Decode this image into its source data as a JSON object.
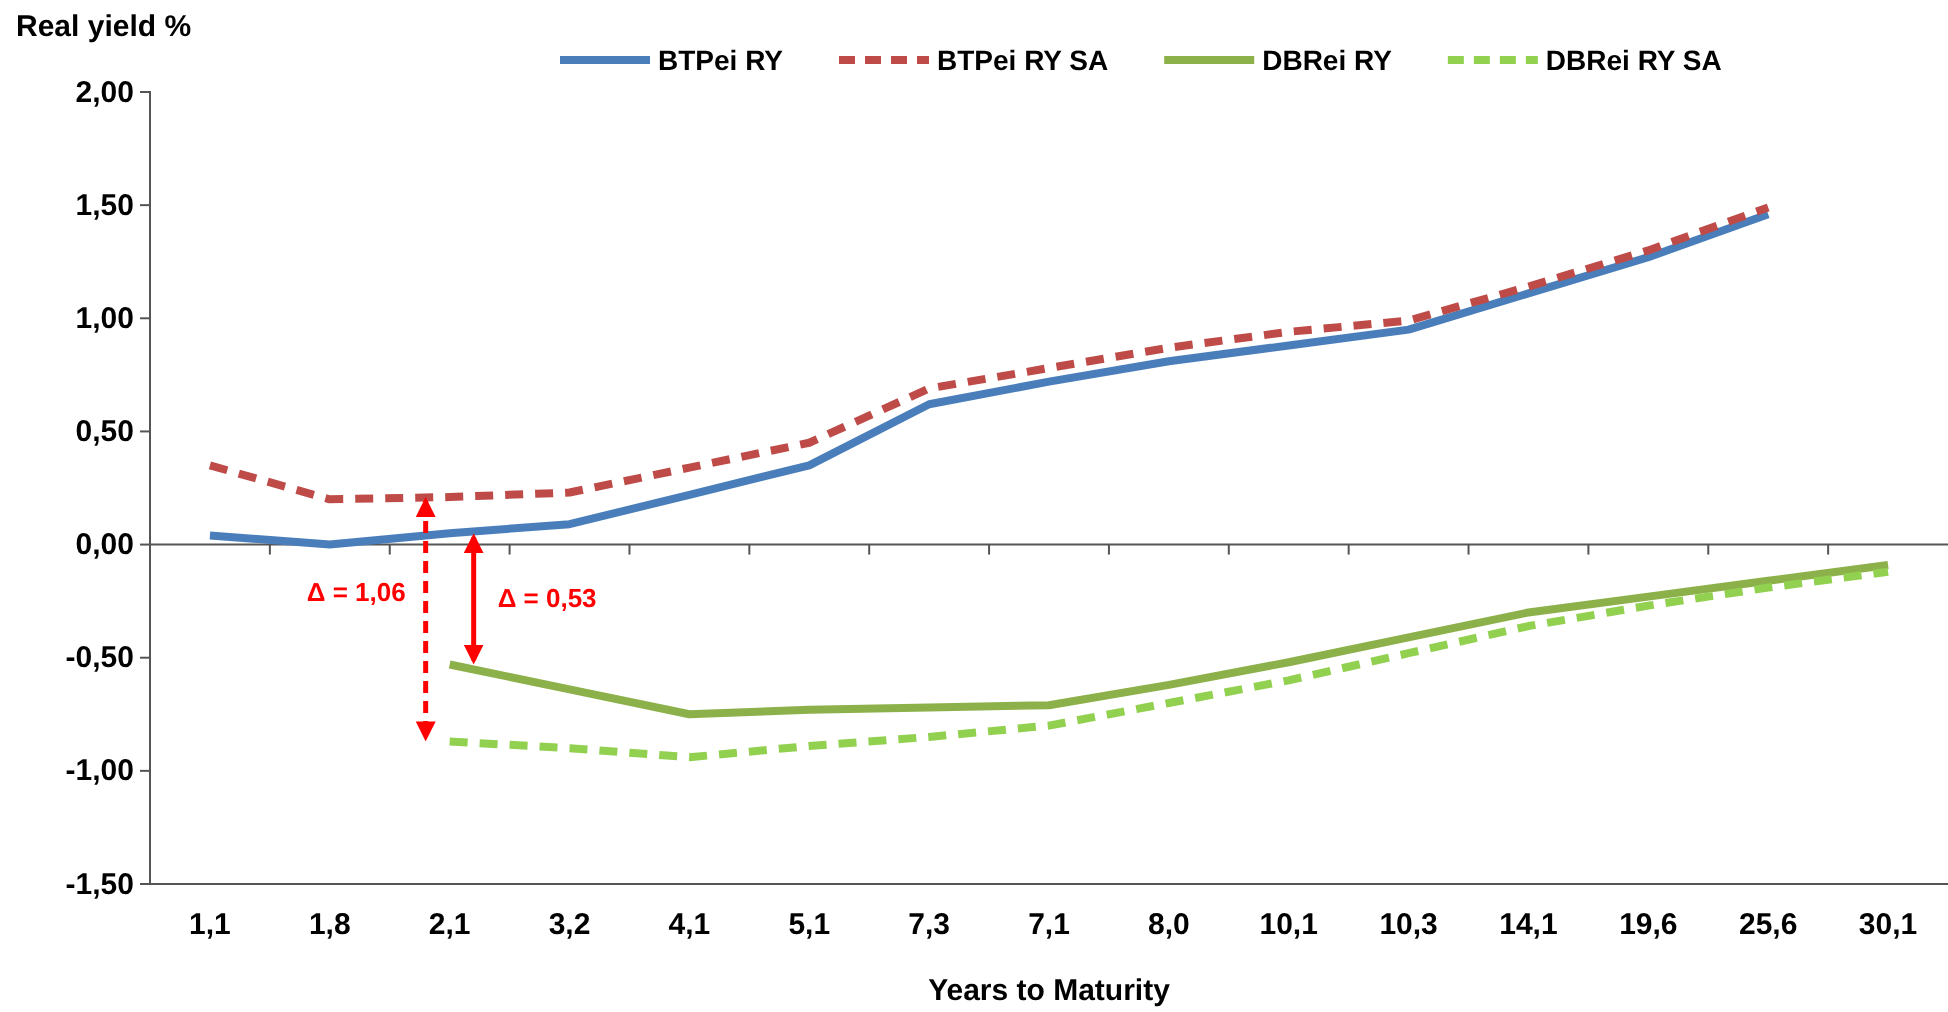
{
  "chart_data": {
    "type": "line",
    "ylabel": "Real yield %",
    "xlabel": "Years to Maturity",
    "categories": [
      "1,1",
      "1,8",
      "2,1",
      "3,2",
      "4,1",
      "5,1",
      "7,3",
      "7,1",
      "8,0",
      "10,1",
      "10,3",
      "14,1",
      "19,6",
      "25,6",
      "30,1"
    ],
    "series": [
      {
        "name": "BTPei RY",
        "color": "#4a7ebb",
        "line_style": "solid",
        "values": [
          0.04,
          0.0,
          0.05,
          0.09,
          0.22,
          0.35,
          0.62,
          0.72,
          0.81,
          0.88,
          0.95,
          1.11,
          1.27,
          1.46,
          null
        ]
      },
      {
        "name": "BTPei RY SA",
        "color": "#be4b48",
        "line_style": "dashed",
        "values": [
          0.35,
          0.2,
          0.21,
          0.23,
          0.34,
          0.45,
          0.69,
          0.78,
          0.87,
          0.94,
          0.99,
          1.14,
          1.3,
          1.49,
          null
        ]
      },
      {
        "name": "DBRei RY",
        "color": "#8db14a",
        "line_style": "solid",
        "values": [
          null,
          null,
          -0.53,
          -0.64,
          -0.75,
          -0.73,
          -0.72,
          -0.71,
          -0.62,
          -0.52,
          -0.41,
          -0.3,
          -0.23,
          -0.16,
          -0.09
        ]
      },
      {
        "name": "DBRei RY SA",
        "color": "#92d050",
        "line_style": "dashed",
        "values": [
          null,
          null,
          -0.87,
          -0.9,
          -0.94,
          -0.89,
          -0.85,
          -0.8,
          -0.7,
          -0.6,
          -0.48,
          -0.36,
          -0.27,
          -0.19,
          -0.12
        ]
      }
    ],
    "ylim": [
      -1.5,
      2.0
    ],
    "yticks": [
      {
        "value": -1.5,
        "label": "-1,50"
      },
      {
        "value": -1.0,
        "label": "-1,00"
      },
      {
        "value": -0.5,
        "label": "-0,50"
      },
      {
        "value": 0,
        "label": "0,00"
      },
      {
        "value": 0.5,
        "label": "0,50"
      },
      {
        "value": 1.0,
        "label": "1,00"
      },
      {
        "value": 1.5,
        "label": "1,50"
      },
      {
        "value": 2.0,
        "label": "2,00"
      }
    ],
    "annotations": [
      "Δ = 1,06",
      "Δ = 0,53"
    ],
    "legend": "top right",
    "marker": "none"
  }
}
